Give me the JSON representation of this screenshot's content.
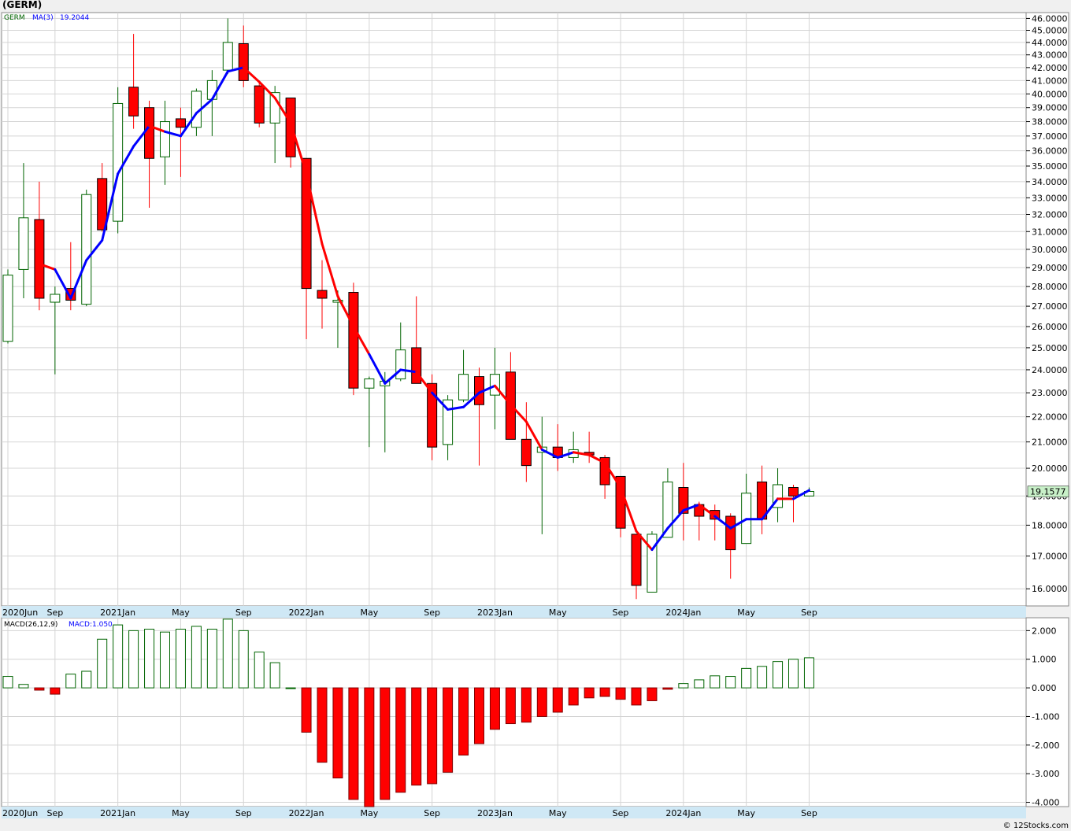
{
  "title": "(GERM)",
  "footer": "© 12Stocks.com",
  "colors": {
    "up": "#006400",
    "down": "#ff0000",
    "ma_up": "#0000ff",
    "ma_down": "#ff0000",
    "last_price_bg": "#c8f0c8",
    "grid": "#d4d4d4",
    "axis_band": "#cfe8f5"
  },
  "price_panel": {
    "legend_symbol": "GERM",
    "legend_ma": "MA(3)",
    "legend_ma_value": "19.2044",
    "last_price_label": "19.1577",
    "y_ticks": [
      "16.0000",
      "17.0000",
      "18.0000",
      "19.0000",
      "20.0000",
      "21.0000",
      "22.0000",
      "23.0000",
      "24.0000",
      "25.0000",
      "26.0000",
      "27.0000",
      "28.0000",
      "29.0000",
      "30.0000",
      "31.0000",
      "32.0000",
      "33.0000",
      "34.0000",
      "35.0000",
      "36.0000",
      "37.0000",
      "38.0000",
      "39.0000",
      "40.0000",
      "41.0000",
      "42.0000",
      "43.0000",
      "44.0000",
      "45.0000",
      "46.0000"
    ]
  },
  "macd_panel": {
    "legend_name": "MACD(26,12,9)",
    "legend_value": "MACD:1.050",
    "y_ticks": [
      "-4.000",
      "-3.000",
      "-2.000",
      "-1.000",
      "0.000",
      "1.000",
      "2.000"
    ]
  },
  "x_ticks": [
    {
      "label": "2020Jun",
      "i": 0
    },
    {
      "label": "Sep",
      "i": 3
    },
    {
      "label": "2021Jan",
      "i": 7
    },
    {
      "label": "May",
      "i": 11
    },
    {
      "label": "Sep",
      "i": 15
    },
    {
      "label": "2022Jan",
      "i": 19
    },
    {
      "label": "May",
      "i": 23
    },
    {
      "label": "Sep",
      "i": 27
    },
    {
      "label": "2023Jan",
      "i": 31
    },
    {
      "label": "May",
      "i": 35
    },
    {
      "label": "Sep",
      "i": 39
    },
    {
      "label": "2024Jan",
      "i": 43
    },
    {
      "label": "May",
      "i": 47
    },
    {
      "label": "Sep",
      "i": 51
    }
  ],
  "chart_data": [
    {
      "type": "candlestick",
      "title": "(GERM)",
      "ylim": [
        15.5,
        46.5
      ],
      "scale": "log",
      "columns": [
        "open",
        "high",
        "low",
        "close"
      ],
      "candles": [
        [
          25.3,
          28.9,
          25.2,
          28.6
        ],
        [
          28.9,
          35.2,
          27.4,
          31.8
        ],
        [
          31.7,
          34.0,
          26.8,
          27.4
        ],
        [
          27.2,
          28.0,
          23.8,
          27.6
        ],
        [
          27.9,
          30.4,
          26.8,
          27.3
        ],
        [
          27.1,
          33.5,
          27.0,
          33.2
        ],
        [
          34.2,
          35.2,
          31.0,
          31.1
        ],
        [
          31.6,
          40.5,
          30.9,
          39.3
        ],
        [
          40.5,
          44.7,
          37.5,
          38.4
        ],
        [
          39.0,
          39.5,
          32.4,
          35.5
        ],
        [
          35.6,
          39.5,
          33.8,
          38.0
        ],
        [
          38.2,
          39.0,
          34.3,
          37.6
        ],
        [
          37.6,
          40.4,
          37.0,
          40.2
        ],
        [
          39.6,
          41.8,
          37.0,
          41.0
        ],
        [
          41.8,
          46.0,
          41.5,
          44.0
        ],
        [
          43.9,
          45.4,
          40.5,
          41.0
        ],
        [
          40.6,
          41.0,
          37.6,
          37.9
        ],
        [
          37.9,
          40.6,
          35.2,
          40.1
        ],
        [
          39.7,
          39.7,
          34.9,
          35.6
        ],
        [
          35.5,
          35.5,
          25.4,
          27.9
        ],
        [
          27.8,
          29.4,
          25.9,
          27.4
        ],
        [
          27.2,
          27.8,
          25.0,
          27.3
        ],
        [
          27.7,
          28.2,
          22.9,
          23.2
        ],
        [
          23.2,
          23.7,
          20.8,
          23.6
        ],
        [
          23.3,
          23.9,
          20.6,
          23.5
        ],
        [
          23.6,
          26.2,
          23.5,
          24.9
        ],
        [
          25.0,
          27.5,
          23.4,
          23.4
        ],
        [
          23.4,
          23.8,
          20.3,
          20.8
        ],
        [
          20.9,
          22.9,
          20.3,
          22.7
        ],
        [
          22.7,
          24.9,
          22.6,
          23.8
        ],
        [
          23.7,
          24.1,
          20.1,
          22.5
        ],
        [
          22.9,
          25.0,
          21.5,
          23.8
        ],
        [
          23.9,
          24.8,
          21.2,
          21.1
        ],
        [
          21.1,
          22.6,
          19.5,
          20.1
        ],
        [
          20.6,
          22.0,
          17.7,
          20.8
        ],
        [
          20.8,
          21.7,
          19.9,
          20.4
        ],
        [
          20.4,
          21.4,
          20.2,
          20.7
        ],
        [
          20.6,
          21.4,
          20.2,
          20.5
        ],
        [
          20.4,
          20.5,
          18.9,
          19.4
        ],
        [
          19.7,
          19.7,
          17.6,
          17.9
        ],
        [
          17.7,
          17.7,
          15.7,
          16.1
        ],
        [
          15.9,
          17.8,
          15.9,
          17.7
        ],
        [
          17.6,
          20.0,
          17.6,
          19.5
        ],
        [
          19.3,
          20.2,
          17.5,
          18.4
        ],
        [
          18.7,
          18.8,
          17.5,
          18.3
        ],
        [
          18.5,
          18.7,
          17.5,
          18.2
        ],
        [
          18.3,
          18.4,
          16.3,
          17.2
        ],
        [
          17.4,
          19.8,
          17.4,
          19.1
        ],
        [
          19.5,
          20.1,
          17.7,
          18.2
        ],
        [
          18.6,
          20.0,
          18.1,
          19.4
        ],
        [
          19.3,
          19.4,
          18.1,
          19.0
        ],
        [
          19.0,
          19.3,
          19.0,
          19.16
        ]
      ],
      "ma3": [
        null,
        null,
        29.2,
        28.9,
        27.4,
        29.4,
        30.5,
        34.5,
        36.3,
        37.7,
        37.3,
        37.0,
        38.6,
        39.6,
        41.7,
        42.0,
        40.9,
        39.7,
        37.9,
        34.5,
        30.3,
        27.5,
        26.0,
        24.7,
        23.4,
        24.0,
        23.9,
        23.0,
        22.3,
        22.4,
        23.0,
        23.3,
        22.5,
        21.8,
        20.7,
        20.4,
        20.6,
        20.5,
        20.2,
        19.3,
        17.8,
        17.2,
        17.9,
        18.5,
        18.7,
        18.3,
        17.9,
        18.2,
        18.2,
        18.9,
        18.9,
        19.2
      ],
      "ma3_color": [
        null,
        null,
        "down",
        "down",
        "up",
        "up",
        "up",
        "up",
        "up",
        "up",
        "down",
        "up",
        "up",
        "up",
        "up",
        "up",
        "down",
        "down",
        "down",
        "down",
        "down",
        "down",
        "down",
        "down",
        "up",
        "up",
        "up",
        "down",
        "up",
        "up",
        "up",
        "up",
        "down",
        "down",
        "down",
        "up",
        "up",
        "down",
        "down",
        "down",
        "down",
        "down",
        "up",
        "up",
        "up",
        "down",
        "up",
        "up",
        "up",
        "up",
        "down",
        "up"
      ]
    },
    {
      "type": "bar",
      "title": "MACD(26,12,9)",
      "ylim": [
        -4.15,
        2.45
      ],
      "values": [
        0.4,
        0.12,
        -0.08,
        -0.22,
        0.48,
        0.58,
        1.7,
        2.2,
        2.0,
        2.05,
        1.95,
        2.05,
        2.15,
        2.05,
        2.4,
        2.0,
        1.25,
        0.88,
        0.0,
        -1.55,
        -2.6,
        -3.15,
        -3.9,
        -4.15,
        -3.9,
        -3.65,
        -3.4,
        -3.35,
        -2.95,
        -2.35,
        -1.95,
        -1.45,
        -1.25,
        -1.2,
        -1.0,
        -0.85,
        -0.6,
        -0.35,
        -0.3,
        -0.4,
        -0.6,
        -0.45,
        -0.05,
        0.15,
        0.28,
        0.42,
        0.4,
        0.68,
        0.75,
        0.92,
        1.0,
        1.05
      ]
    }
  ]
}
